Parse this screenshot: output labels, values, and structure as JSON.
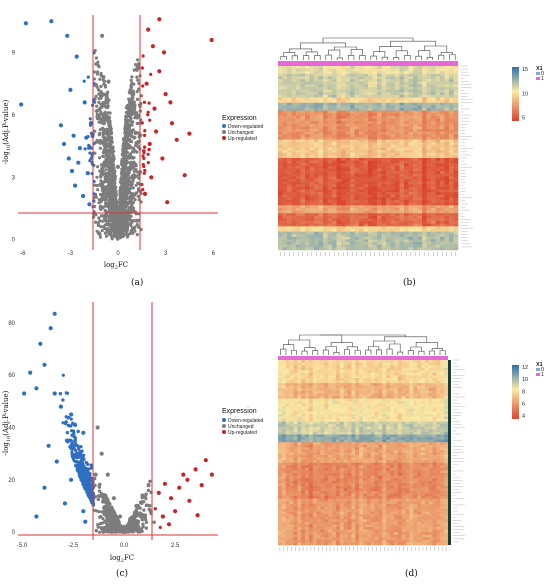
{
  "colors": {
    "down": "#2f6fc1",
    "unchanged": "#7d7d7d",
    "up": "#c8242b",
    "threshold": "#e0333a",
    "annot_group0": "#8fa3d9",
    "annot_group1": "#e36ad7",
    "heat_low": "#d9442f",
    "heat_mid": "#fbe9a4",
    "heat_high": "#2b6fb0"
  },
  "legend": {
    "title": "Expression",
    "items": [
      "Down-regulated",
      "Unchanged",
      "Up-regulated"
    ]
  },
  "panels": {
    "a": "(a)",
    "b": "(b)",
    "c": "(c)",
    "d": "(d)"
  },
  "chart_data": [
    {
      "type": "scatter",
      "panel": "(a)",
      "title": "",
      "xlabel": "log2FC",
      "ylabel": "-log10(Adj.P-value)",
      "xlim": [
        -6.3,
        6.3
      ],
      "ylim": [
        -0.4,
        10.8
      ],
      "xticks": [
        -6,
        -3,
        0,
        3,
        6
      ],
      "yticks": [
        0,
        3,
        6,
        9
      ],
      "thresholds": {
        "x": [
          -1.5,
          1.5
        ],
        "y": 1.3
      },
      "legend_position": "right",
      "series": [
        {
          "name": "Down-regulated",
          "points": [
            [
              -6.1,
              6.5
            ],
            [
              -5.8,
              10.4
            ],
            [
              -4.2,
              10.5
            ],
            [
              -3.2,
              9.8
            ],
            [
              -3.0,
              7.2
            ],
            [
              -2.6,
              8.8
            ],
            [
              -3.6,
              5.5
            ],
            [
              -2.8,
              5.0
            ],
            [
              -2.1,
              6.6
            ],
            [
              -3.1,
              3.9
            ],
            [
              -2.4,
              4.4
            ],
            [
              -1.9,
              3.2
            ],
            [
              -2.7,
              2.6
            ],
            [
              -2.2,
              2.1
            ],
            [
              -1.8,
              1.7
            ],
            [
              -2.9,
              3.3
            ],
            [
              -2.0,
              4.9
            ],
            [
              -1.7,
              5.6
            ],
            [
              -2.5,
              3.7
            ],
            [
              -3.4,
              4.6
            ]
          ]
        },
        {
          "name": "Unchanged",
          "points": [
            [
              -1.2,
              0.3
            ],
            [
              -0.8,
              1.0
            ],
            [
              -0.4,
              2.2
            ],
            [
              0.0,
              3.5
            ],
            [
              0.5,
              5.0
            ],
            [
              0.9,
              6.8
            ],
            [
              1.2,
              8.2
            ],
            [
              -1.0,
              9.8
            ],
            [
              -0.6,
              7.6
            ],
            [
              0.3,
              4.1
            ],
            [
              0.7,
              2.8
            ],
            [
              -0.2,
              1.4
            ],
            [
              1.1,
              3.6
            ],
            [
              -1.3,
              5.9
            ],
            [
              0.1,
              0.5
            ]
          ]
        },
        {
          "name": "Up-regulated",
          "points": [
            [
              1.7,
              2.2
            ],
            [
              2.0,
              4.6
            ],
            [
              2.3,
              6.3
            ],
            [
              2.6,
              8.1
            ],
            [
              3.0,
              7.0
            ],
            [
              3.4,
              5.6
            ],
            [
              2.8,
              3.9
            ],
            [
              2.2,
              9.3
            ],
            [
              2.6,
              10.6
            ],
            [
              1.9,
              10.1
            ],
            [
              3.7,
              4.8
            ],
            [
              4.2,
              3.1
            ],
            [
              3.1,
              1.8
            ],
            [
              5.9,
              9.6
            ],
            [
              2.4,
              5.2
            ],
            [
              1.8,
              7.5
            ],
            [
              3.3,
              6.6
            ],
            [
              2.9,
              9.0
            ],
            [
              2.1,
              3.0
            ],
            [
              4.5,
              5.1
            ]
          ]
        }
      ]
    },
    {
      "type": "heatmap",
      "panel": "(b)",
      "colorbar_title": "X1",
      "colorbar_ticks": [
        15,
        10,
        5
      ],
      "annotation_levels": [
        "0",
        "1"
      ]
    },
    {
      "type": "scatter",
      "panel": "(c)",
      "title": "",
      "xlabel": "log2FC",
      "ylabel": "-log10(Adj.P-value)",
      "xlim": [
        -5.2,
        4.6
      ],
      "ylim": [
        -3,
        88
      ],
      "xticks": [
        -5.0,
        -2.5,
        0.0,
        2.5
      ],
      "yticks": [
        0,
        20,
        40,
        60,
        80
      ],
      "thresholds": {
        "x": [
          -1.5,
          1.5
        ],
        "y": 1.3
      },
      "legend_position": "right",
      "series": [
        {
          "name": "Down-regulated",
          "points": [
            [
              -3.4,
              83.5
            ],
            [
              -3.6,
              78.0
            ],
            [
              -4.1,
              72.0
            ],
            [
              -3.9,
              64.0
            ],
            [
              -4.6,
              61.0
            ],
            [
              -4.3,
              55.0
            ],
            [
              -3.4,
              53.0
            ],
            [
              -4.9,
              53.0
            ],
            [
              -3.1,
              48.0
            ],
            [
              -2.6,
              45.0
            ],
            [
              -2.4,
              41.0
            ],
            [
              -2.0,
              38.0
            ],
            [
              -2.8,
              35.0
            ],
            [
              -3.7,
              33.0
            ],
            [
              -2.2,
              30.0
            ],
            [
              -3.3,
              27.0
            ],
            [
              -1.8,
              24.0
            ],
            [
              -2.6,
              20.0
            ],
            [
              -3.9,
              17.0
            ],
            [
              -1.7,
              14.0
            ],
            [
              -2.9,
              11.0
            ],
            [
              -2.0,
              8.0
            ],
            [
              -4.3,
              6.0
            ],
            [
              -1.9,
              4.0
            ]
          ]
        },
        {
          "name": "Unchanged",
          "points": [
            [
              -1.3,
              40.0
            ],
            [
              -1.1,
              30.0
            ],
            [
              -0.8,
              22.0
            ],
            [
              -0.5,
              13.0
            ],
            [
              -0.2,
              6.0
            ],
            [
              0.0,
              2.0
            ],
            [
              0.3,
              5.0
            ],
            [
              0.6,
              10.0
            ],
            [
              0.9,
              14.0
            ],
            [
              1.2,
              18.0
            ],
            [
              -1.4,
              22.0
            ],
            [
              1.3,
              8.0
            ]
          ]
        },
        {
          "name": "Up-regulated",
          "points": [
            [
              1.7,
              15.0
            ],
            [
              2.0,
              18.5
            ],
            [
              2.3,
              13.0
            ],
            [
              2.7,
              17.0
            ],
            [
              3.1,
              20.0
            ],
            [
              3.5,
              24.0
            ],
            [
              4.0,
              27.5
            ],
            [
              3.8,
              18.0
            ],
            [
              4.3,
              22.0
            ],
            [
              2.5,
              8.0
            ],
            [
              3.2,
              12.0
            ],
            [
              1.9,
              6.0
            ],
            [
              2.2,
              3.0
            ],
            [
              3.6,
              6.5
            ],
            [
              2.9,
              22.0
            ]
          ]
        }
      ]
    },
    {
      "type": "heatmap",
      "panel": "(d)",
      "colorbar_title": "X1",
      "colorbar_ticks": [
        12,
        10,
        8,
        6,
        4
      ],
      "annotation_levels": [
        "0",
        "1"
      ]
    }
  ]
}
